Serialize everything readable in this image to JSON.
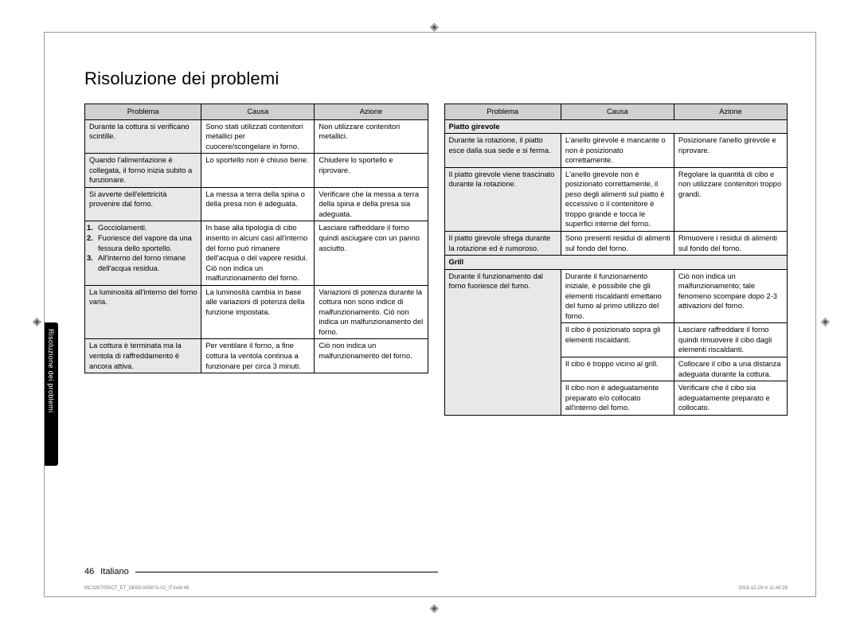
{
  "title": "Risoluzione dei problemi",
  "sideTab": "Risoluzione dei problemi",
  "headers": {
    "problema": "Problema",
    "causa": "Causa",
    "azione": "Azione"
  },
  "colWidths": {
    "problema": "34%",
    "causa": "33%",
    "azione": "33%"
  },
  "left": [
    {
      "problem": "Durante la cottura si verificano scintille.",
      "cause": "Sono stati utilizzati contenitori metallici per cuocere/scongelare in forno.",
      "action": "Non utilizzare contenitori metallici."
    },
    {
      "problem": "Quando l'alimentazione è collegata, il forno inizia subito a funzionare.",
      "cause": "Lo sportello non è chiuso bene.",
      "action": "Chiudere lo sportello e riprovare."
    },
    {
      "problem": "Si avverte dell'elettricità provenire dal forno.",
      "cause": "La messa a terra della spina o della presa non è adeguata.",
      "action": "Verificare che la messa a terra della spina e della presa sia adeguata."
    },
    {
      "problemList": [
        {
          "n": "1.",
          "t": "Gocciolamenti."
        },
        {
          "n": "2.",
          "t": "Fuoriesce del vapore da una fessura dello sportello."
        },
        {
          "n": "3.",
          "t": "All'interno del forno rimane dell'acqua residua."
        }
      ],
      "cause": "In base alla tipologia di cibo inserito in alcuni casi all'interno del forno può rimanere dell'acqua o del vapore residui. Ciò non indica un malfunzionamento del forno.",
      "action": "Lasciare raffreddare il forno quindi asciugare con un panno asciutto."
    },
    {
      "problem": "La luminosità all'interno del forno varia.",
      "cause": "La luminosità cambia in base alle variazioni di potenza della funzione impostata.",
      "action": "Variazioni di potenza durante la cottura non sono indice di malfunzionamento. Ciò non indica un malfunzionamento del forno."
    },
    {
      "problem": "La cottura è terminata ma la ventola di raffreddamento è ancora attiva.",
      "cause": "Per ventilare il forno, a fine cottura la ventola continua a funzionare per circa 3 minuti.",
      "action": "Ciò non indica un malfunzionamento del forno."
    }
  ],
  "right": [
    {
      "section": "Piatto girevole"
    },
    {
      "problem": "Durante la rotazione, il piatto esce dalla sua sede e si ferma.",
      "cause": "L'anello girevole è mancante o non è posizionato correttamente.",
      "action": "Posizionare l'anello girevole e riprovare."
    },
    {
      "problem": "Il piatto girevole viene trascinato durante la rotazione.",
      "cause": "L'anello girevole non è posizionato correttamente, il peso degli alimenti sul piatto è eccessivo o il contenitore è troppo grande e tocca le superfici interne del forno.",
      "action": "Regolare la quantità di cibo e non utilizzare contenitori troppo grandi."
    },
    {
      "problem": "Il piatto girevole sfrega durante la rotazione ed è rumoroso.",
      "cause": "Sono presenti residui di alimenti sul fondo del forno.",
      "action": "Rimuovere i residui di alimenti sul fondo del forno."
    },
    {
      "section": "Grill"
    },
    {
      "problem": "Durante il funzionamento dal forno fuoriesce del fumo.",
      "rowspan": 4,
      "rows": [
        {
          "cause": "Durante il funzionamento iniziale, è possibile che gli elementi riscaldanti emettano del fumo al primo utilizzo del forno.",
          "action": "Ciò non indica un malfunzionamento; tale fenomeno scompare dopo 2-3 attivazioni del forno."
        },
        {
          "cause": "Il cibo è posizionato sopra gli elementi riscaldanti.",
          "action": "Lasciare raffreddare il forno quindi rimuovere il cibo dagli elementi riscaldanti."
        },
        {
          "cause": "Il cibo è troppo vicino al grill.",
          "action": "Collocare il cibo a una distanza adeguata durante la cottura."
        },
        {
          "cause": "Il cibo non è adeguatamente preparato e/o collocato all'interno del forno.",
          "action": "Verificare che il cibo sia adeguatamente preparato e collocato."
        }
      ]
    }
  ],
  "footer": {
    "page": "46",
    "lang": "Italiano"
  },
  "imprint": {
    "left": "MC32K7055CT_ET_DE68-04387A-02_IT.indd   46",
    "right": "2016-12-28   ⏲ 11:42:28"
  }
}
